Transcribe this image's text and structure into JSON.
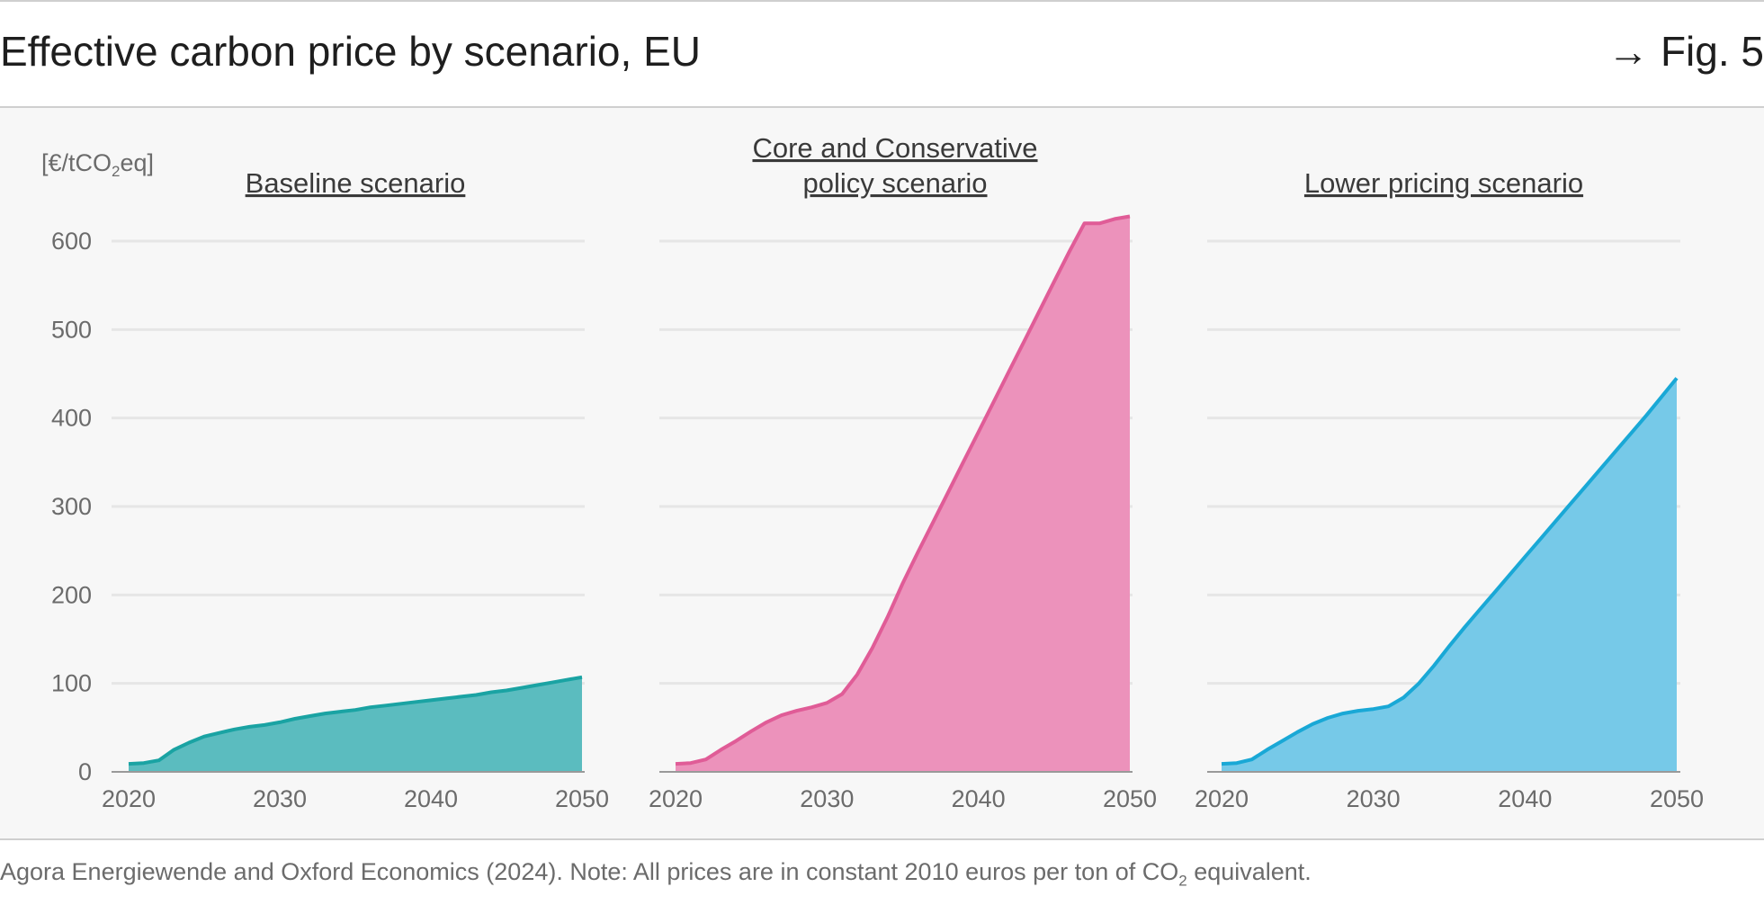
{
  "header": {
    "title": "Effective carbon price by scenario, EU",
    "fig_ref": "→ Fig. 5"
  },
  "footer": {
    "source_pre": "Agora Energiewende and Oxford Economics (2024). Note: All prices are in constant 2010 euros per ton of CO",
    "source_sub": "2",
    "source_post": " equivalent."
  },
  "y_unit": {
    "pre": "[€/tCO",
    "sub": "2",
    "post": "eq]"
  },
  "chart_data": {
    "type": "area",
    "ylim": [
      0,
      600
    ],
    "yticks": [
      0,
      100,
      200,
      300,
      400,
      500,
      600
    ],
    "xlim": [
      2019,
      2050
    ],
    "xticks": [
      2020,
      2030,
      2040,
      2050
    ],
    "grid": true,
    "x": [
      2020,
      2021,
      2022,
      2023,
      2024,
      2025,
      2026,
      2027,
      2028,
      2029,
      2030,
      2031,
      2032,
      2033,
      2034,
      2035,
      2036,
      2037,
      2038,
      2039,
      2040,
      2041,
      2042,
      2043,
      2044,
      2045,
      2046,
      2047,
      2048,
      2049,
      2050
    ],
    "panels": [
      {
        "title": [
          "Baseline scenario"
        ],
        "color": "#1aa3a3",
        "fill": "#5bbcbf",
        "values": [
          9,
          10,
          13,
          25,
          33,
          40,
          44,
          48,
          51,
          53,
          56,
          60,
          63,
          66,
          68,
          70,
          73,
          75,
          77,
          79,
          81,
          83,
          85,
          87,
          90,
          92,
          95,
          98,
          101,
          104,
          107
        ]
      },
      {
        "title": [
          "Core and Conservative",
          "policy scenario"
        ],
        "color": "#e05c97",
        "fill": "#ec92bb",
        "values": [
          9,
          10,
          14,
          25,
          35,
          46,
          56,
          64,
          69,
          73,
          78,
          88,
          110,
          140,
          175,
          213,
          248,
          282,
          316,
          350,
          384,
          418,
          452,
          486,
          520,
          554,
          588,
          620,
          620,
          625,
          628
        ]
      },
      {
        "title": [
          "Lower pricing scenario"
        ],
        "color": "#19a8d6",
        "fill": "#76c9e8",
        "values": [
          9,
          10,
          14,
          25,
          35,
          45,
          54,
          61,
          66,
          69,
          71,
          74,
          84,
          100,
          120,
          142,
          163,
          183,
          203,
          223,
          243,
          263,
          283,
          303,
          323,
          343,
          363,
          383,
          403,
          424,
          445
        ]
      }
    ]
  }
}
